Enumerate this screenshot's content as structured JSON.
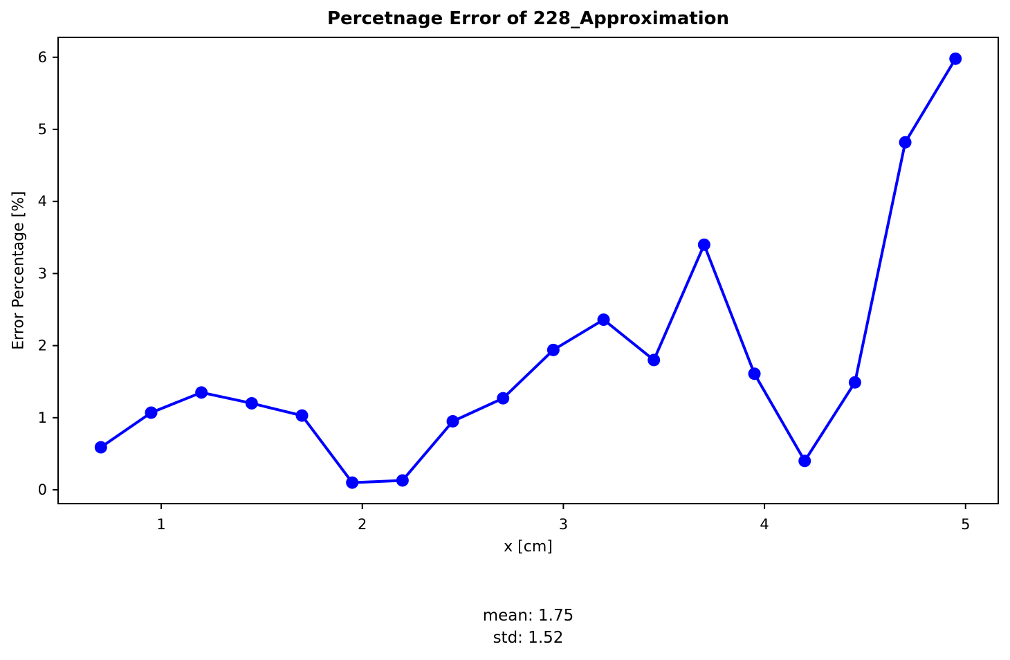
{
  "chart_data": {
    "type": "line",
    "title": "Percetnage Error of 228_Approximation",
    "xlabel": "x [cm]",
    "ylabel": "Error Percentage [%]",
    "x": [
      0.7,
      0.95,
      1.2,
      1.45,
      1.7,
      1.95,
      2.2,
      2.45,
      2.7,
      2.95,
      3.2,
      3.45,
      3.7,
      3.95,
      4.2,
      4.45,
      4.7,
      4.95
    ],
    "y": [
      0.59,
      1.07,
      1.35,
      1.2,
      1.03,
      0.1,
      0.13,
      0.95,
      1.27,
      1.94,
      2.36,
      1.8,
      3.4,
      1.61,
      0.4,
      1.49,
      4.82,
      5.98
    ],
    "xticks": [
      1,
      2,
      3,
      4,
      5
    ],
    "xtick_labels": [
      "1",
      "2",
      "3",
      "4",
      "5"
    ],
    "yticks": [
      0,
      1,
      2,
      3,
      4,
      5,
      6
    ],
    "ytick_labels": [
      "0",
      "1",
      "2",
      "3",
      "4",
      "5",
      "6"
    ],
    "xlim": [
      0.4873,
      5.1625
    ],
    "ylim": [
      -0.192,
      6.276
    ],
    "grid": false,
    "legend_position": "none",
    "line_color": "#0000ff",
    "marker_color": "#0000ff",
    "spine_color": "#000000",
    "marker": "circle"
  },
  "footer": {
    "mean": "mean: 1.75",
    "std": "std: 1.52"
  }
}
